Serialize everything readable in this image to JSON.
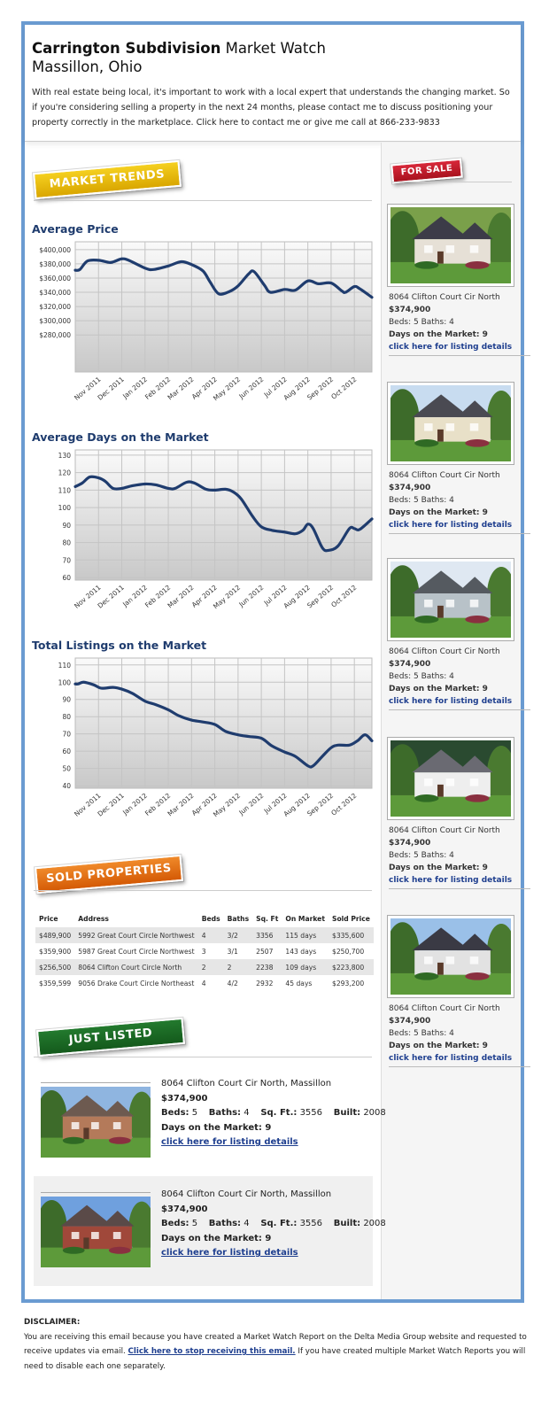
{
  "header": {
    "title_bold": "Carrington Subdivision",
    "title_rest": "Market Watch",
    "subtitle": "Massillon, Ohio",
    "intro": "With real estate being local, it's important to work with a local expert that understands the changing market. So if you're considering selling a property in the next 24 months, please contact me to discuss positioning your property correctly in the marketplace. Click here to contact me or give me call at 866-233-9833"
  },
  "sections": {
    "market_trends": "MARKET TRENDS",
    "sold_properties": "SOLD PROPERTIES",
    "just_listed": "JUST LISTED",
    "for_sale": "FOR SALE"
  },
  "colors": {
    "frame": "#6a9bd1",
    "line": "#1f3c6e",
    "market_trends": "#e8b800",
    "sold": "#e06a10",
    "just_listed": "#1c6b26",
    "for_sale": "#c8202a",
    "link": "#1f3f8f"
  },
  "chart_data": [
    {
      "type": "line",
      "title": "Average Price",
      "x_ticks": [
        "Nov 2011",
        "Dec 2011",
        "Jan 2012",
        "Feb 2012",
        "Mar 2012",
        "Apr 2012",
        "May 2012",
        "Jun 2012",
        "Jul 2012",
        "Aug 2012",
        "Sep 2012",
        "Oct 2012"
      ],
      "y_ticks": [
        "$400,000",
        "$380,000",
        "$360,000",
        "$340,000",
        "$320,000",
        "$300,000",
        "$280,000"
      ],
      "y_tick_values": [
        400000,
        380000,
        360000,
        340000,
        320000,
        300000,
        280000
      ],
      "ylim": [
        228000,
        411000
      ],
      "xlim": [
        "2011-10-01",
        "2012-10-24"
      ],
      "grid": true,
      "points": [
        [
          "2011-10-01",
          371000
        ],
        [
          "2011-10-07",
          372000
        ],
        [
          "2011-10-17",
          384000
        ],
        [
          "2011-11-01",
          385000
        ],
        [
          "2011-11-15",
          382000
        ],
        [
          "2011-11-21",
          383000
        ],
        [
          "2011-12-01",
          387000
        ],
        [
          "2011-12-10",
          385000
        ],
        [
          "2012-01-01",
          374000
        ],
        [
          "2012-01-12",
          372000
        ],
        [
          "2012-02-01",
          377000
        ],
        [
          "2012-02-18",
          383000
        ],
        [
          "2012-03-01",
          379000
        ],
        [
          "2012-03-16",
          370000
        ],
        [
          "2012-03-25",
          355000
        ],
        [
          "2012-04-06",
          338000
        ],
        [
          "2012-04-20",
          341000
        ],
        [
          "2012-05-01",
          349000
        ],
        [
          "2012-05-15",
          366000
        ],
        [
          "2012-05-22",
          369000
        ],
        [
          "2012-06-05",
          350000
        ],
        [
          "2012-06-13",
          340000
        ],
        [
          "2012-07-01",
          344000
        ],
        [
          "2012-07-15",
          343000
        ],
        [
          "2012-08-01",
          356000
        ],
        [
          "2012-08-15",
          352000
        ],
        [
          "2012-09-01",
          353000
        ],
        [
          "2012-09-15",
          342000
        ],
        [
          "2012-09-20",
          340000
        ],
        [
          "2012-10-01",
          348000
        ],
        [
          "2012-10-08",
          345000
        ],
        [
          "2012-10-24",
          333000
        ]
      ]
    },
    {
      "type": "line",
      "title": "Average Days on the Market",
      "x_ticks": [
        "Nov 2011",
        "Dec 2011",
        "Jan 2012",
        "Feb 2012",
        "Mar 2012",
        "Apr 2012",
        "May 2012",
        "Jun 2012",
        "Jul 2012",
        "Aug 2012",
        "Sep 2012",
        "Oct 2012"
      ],
      "y_ticks": [
        "130",
        "120",
        "110",
        "100",
        "90",
        "80",
        "70",
        "60"
      ],
      "y_tick_values": [
        130,
        120,
        110,
        100,
        90,
        80,
        70,
        60
      ],
      "ylim": [
        58.5,
        133
      ],
      "xlim": [
        "2011-10-01",
        "2012-10-24"
      ],
      "grid": true,
      "points": [
        [
          "2011-10-01",
          112
        ],
        [
          "2011-10-10",
          114
        ],
        [
          "2011-10-20",
          117.5
        ],
        [
          "2011-11-01",
          117
        ],
        [
          "2011-11-10",
          115
        ],
        [
          "2011-11-20",
          111
        ],
        [
          "2011-12-01",
          111
        ],
        [
          "2011-12-15",
          112.5
        ],
        [
          "2012-01-01",
          113.5
        ],
        [
          "2012-01-15",
          113
        ],
        [
          "2012-02-01",
          111
        ],
        [
          "2012-02-10",
          111
        ],
        [
          "2012-02-25",
          114.5
        ],
        [
          "2012-03-05",
          114
        ],
        [
          "2012-03-20",
          110.5
        ],
        [
          "2012-04-01",
          110
        ],
        [
          "2012-04-15",
          110.5
        ],
        [
          "2012-04-25",
          109
        ],
        [
          "2012-05-05",
          105
        ],
        [
          "2012-05-20",
          95
        ],
        [
          "2012-06-01",
          89
        ],
        [
          "2012-06-15",
          87
        ],
        [
          "2012-07-01",
          86
        ],
        [
          "2012-07-15",
          85
        ],
        [
          "2012-07-25",
          87
        ],
        [
          "2012-08-01",
          90.5
        ],
        [
          "2012-08-08",
          88
        ],
        [
          "2012-08-20",
          77
        ],
        [
          "2012-08-28",
          75.5
        ],
        [
          "2012-09-10",
          78
        ],
        [
          "2012-09-25",
          88
        ],
        [
          "2012-10-01",
          88
        ],
        [
          "2012-10-08",
          87.5
        ],
        [
          "2012-10-24",
          93.5
        ]
      ]
    },
    {
      "type": "line",
      "title": "Total Listings on the Market",
      "x_ticks": [
        "Nov 2011",
        "Dec 2011",
        "Jan 2012",
        "Feb 2012",
        "Mar 2012",
        "Apr 2012",
        "May 2012",
        "Jun 2012",
        "Jul 2012",
        "Aug 2012",
        "Sep 2012",
        "Oct 2012"
      ],
      "y_ticks": [
        "110",
        "100",
        "90",
        "80",
        "70",
        "60",
        "50",
        "40"
      ],
      "y_tick_values": [
        110,
        100,
        90,
        80,
        70,
        60,
        50,
        40
      ],
      "ylim": [
        38.5,
        114
      ],
      "xlim": [
        "2011-10-01",
        "2012-10-24"
      ],
      "grid": true,
      "points": [
        [
          "2011-10-01",
          99
        ],
        [
          "2011-10-05",
          99
        ],
        [
          "2011-10-12",
          100
        ],
        [
          "2011-10-25",
          98.5
        ],
        [
          "2011-11-05",
          96.5
        ],
        [
          "2011-11-20",
          97
        ],
        [
          "2011-12-01",
          96
        ],
        [
          "2011-12-15",
          93.5
        ],
        [
          "2012-01-01",
          89
        ],
        [
          "2012-01-15",
          87
        ],
        [
          "2012-02-01",
          84
        ],
        [
          "2012-02-15",
          80.5
        ],
        [
          "2012-03-01",
          78
        ],
        [
          "2012-03-15",
          77
        ],
        [
          "2012-04-01",
          75.5
        ],
        [
          "2012-04-15",
          71.5
        ],
        [
          "2012-05-01",
          69.5
        ],
        [
          "2012-05-15",
          68.5
        ],
        [
          "2012-06-01",
          67.5
        ],
        [
          "2012-06-15",
          63
        ],
        [
          "2012-07-01",
          59.5
        ],
        [
          "2012-07-15",
          57
        ],
        [
          "2012-08-01",
          51.5
        ],
        [
          "2012-08-08",
          51.5
        ],
        [
          "2012-08-20",
          57
        ],
        [
          "2012-09-01",
          62
        ],
        [
          "2012-09-10",
          63.5
        ],
        [
          "2012-09-25",
          63.5
        ],
        [
          "2012-10-05",
          66
        ],
        [
          "2012-10-15",
          69.5
        ],
        [
          "2012-10-24",
          66
        ]
      ]
    }
  ],
  "sold_table": {
    "headers": [
      "Price",
      "Address",
      "Beds",
      "Baths",
      "Sq. Ft",
      "On Market",
      "Sold Price"
    ],
    "rows": [
      [
        "$489,900",
        "5992 Great Court Circle Northwest",
        "4",
        "3/2",
        "3356",
        "115 days",
        "$335,600"
      ],
      [
        "$359,900",
        "5987 Great Court Circle Northwest",
        "3",
        "3/1",
        "2507",
        "143 days",
        "$250,700"
      ],
      [
        "$256,500",
        "8064 Clifton Court Circle North",
        "2",
        "2",
        "2238",
        "109 days",
        "$223,800"
      ],
      [
        "$359,599",
        "9056 Drake Court Circle Northeast",
        "4",
        "4/2",
        "2932",
        "45 days",
        "$293,200"
      ]
    ]
  },
  "just_listed": [
    {
      "address": "8064 Clifton Court Cir North, Massillon",
      "price": "$374,900",
      "beds_label": "Beds:",
      "beds": "5",
      "baths_label": "Baths:",
      "baths": "4",
      "sqft_label": "Sq. Ft.:",
      "sqft": "3556",
      "built_label": "Built:",
      "built": "2008",
      "days": "Days on the Market: 9",
      "link": "click here for listing details"
    },
    {
      "address": "8064 Clifton Court Cir North, Massillon",
      "price": "$374,900",
      "beds_label": "Beds:",
      "beds": "5",
      "baths_label": "Baths:",
      "baths": "4",
      "sqft_label": "Sq. Ft.:",
      "sqft": "3556",
      "built_label": "Built:",
      "built": "2008",
      "days": "Days on the Market: 9",
      "link": "click here for listing details"
    }
  ],
  "sidebar": {
    "cards": [
      {
        "address": "8064 Clifton Court Cir North",
        "price": "$374,900",
        "beds": "Beds: 5 Baths: 4",
        "days": "Days on the Market: 9",
        "link": "click here for listing details"
      },
      {
        "address": "8064 Clifton Court Cir North",
        "price": "$374,900",
        "beds": "Beds: 5 Baths: 4",
        "days": "Days on the Market: 9",
        "link": "click here for listing details"
      },
      {
        "address": "8064 Clifton Court Cir North",
        "price": "$374,900",
        "beds": "Beds: 5 Baths: 4",
        "days": "Days on the Market: 9",
        "link": "click here for listing details"
      },
      {
        "address": "8064 Clifton Court Cir North",
        "price": "$374,900",
        "beds": "Beds: 5 Baths: 4",
        "days": "Days on the Market: 9",
        "link": "click here for listing details"
      },
      {
        "address": "8064 Clifton Court Cir North",
        "price": "$374,900",
        "beds": "Beds: 5 Baths: 4",
        "days": "Days on the Market: 9",
        "link": "click here for listing details"
      }
    ]
  },
  "disclaimer": {
    "heading": "DISCLAIMER:",
    "text_before": "You are receiving this email because you have created a Market Watch Report on the Delta Media Group website and requested to receive updates via email.",
    "link": "Click here to stop receiving this email.",
    "text_after": "If you have created multiple Market Watch Reports you will need to disable each one separately."
  }
}
